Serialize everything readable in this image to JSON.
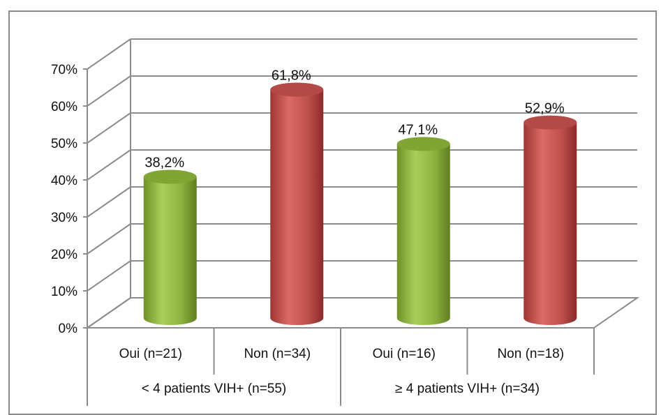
{
  "chart_data": {
    "type": "bar",
    "style": "3d-cylinder",
    "title": "",
    "xlabel": "",
    "ylabel": "",
    "ylim": [
      0,
      70
    ],
    "y_ticks": [
      "0%",
      "10%",
      "20%",
      "30%",
      "40%",
      "50%",
      "60%",
      "70%"
    ],
    "grid": true,
    "legend": "none",
    "categories": [
      "Oui (n=21)",
      "Non (n=34)",
      "Oui (n=16)",
      "Non (n=18)"
    ],
    "groups": [
      {
        "label": "< 4 patients VIH+ (n=55)",
        "categories": [
          0,
          1
        ]
      },
      {
        "label": "≥ 4 patients VIH+ (n=34)",
        "categories": [
          2,
          3
        ]
      }
    ],
    "values": [
      38.2,
      61.8,
      47.1,
      52.9
    ],
    "value_labels": [
      "38,2%",
      "61,8%",
      "47,1%",
      "52,9%"
    ],
    "colors": {
      "oui": "#8db43f",
      "non": "#c0504d",
      "grid": "#8c8c8c"
    }
  }
}
